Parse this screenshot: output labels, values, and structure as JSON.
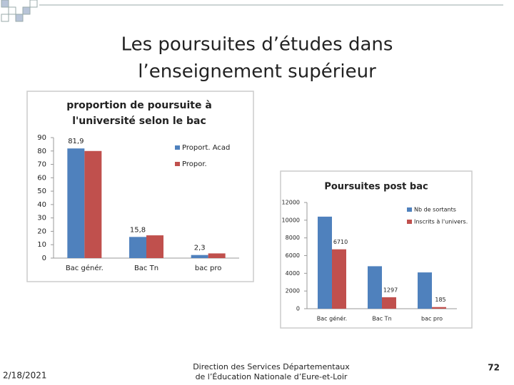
{
  "slide": {
    "title": [
      "Les poursuites d’études dans",
      "l’enseignement supérieur"
    ],
    "date": "2/18/2021",
    "footer": [
      "Direction des Services Départementaux",
      "de l’Éducation Nationale d’Eure-et-Loir"
    ],
    "page_number": "72"
  },
  "chart_data": [
    {
      "type": "bar",
      "title": [
        "proportion de poursuite à",
        "l'université selon le bac"
      ],
      "categories": [
        "Bac génér.",
        "Bac Tn",
        "bac pro"
      ],
      "series": [
        {
          "name": "Proport. Acad",
          "color": "#4f81bd",
          "values": [
            81.9,
            15.8,
            2.3
          ],
          "value_labels": [
            "81,9",
            "15,8",
            "2,3"
          ]
        },
        {
          "name": "Propor.",
          "color": "#c0504d",
          "values": [
            80,
            17,
            3.5
          ]
        }
      ],
      "ylim": [
        0,
        90
      ],
      "yticks": [
        0,
        10,
        20,
        30,
        40,
        50,
        60,
        70,
        80,
        90
      ],
      "grid": false
    },
    {
      "type": "bar",
      "title": [
        "Poursuites post bac"
      ],
      "categories": [
        "Bac génér.",
        "Bac Tn",
        "bac pro"
      ],
      "series": [
        {
          "name": "Nb de sortants",
          "color": "#4f81bd",
          "values": [
            10400,
            4800,
            4100
          ]
        },
        {
          "name": "Inscrits à l'univers.",
          "color": "#c0504d",
          "values": [
            6710,
            1297,
            185
          ],
          "labeled": true
        }
      ],
      "ylim": [
        0,
        12000
      ],
      "yticks": [
        0,
        2000,
        4000,
        6000,
        8000,
        10000,
        12000
      ],
      "grid": false
    }
  ]
}
